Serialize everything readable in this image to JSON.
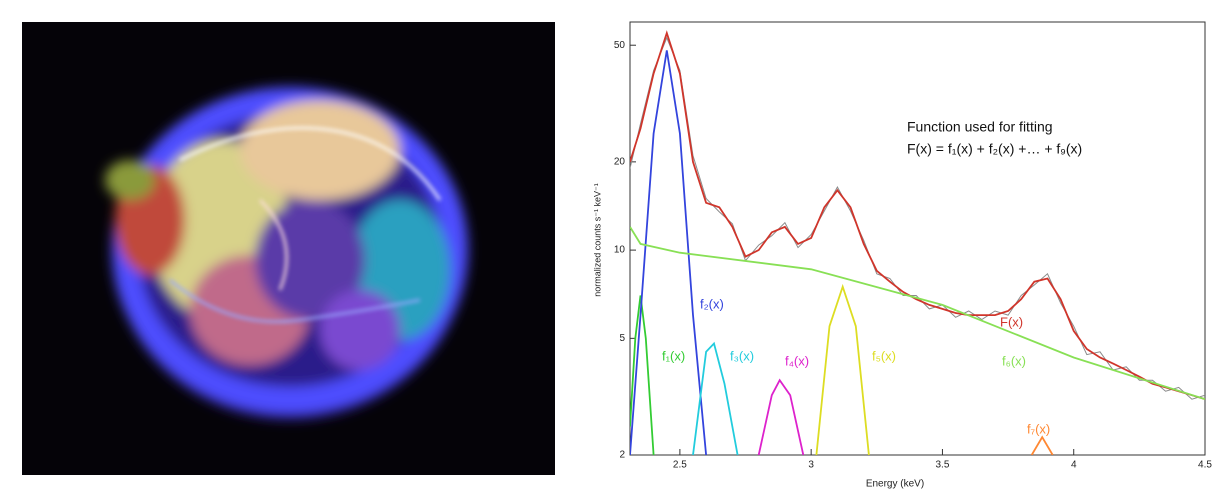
{
  "chart_data": {
    "type": "line",
    "log_y": true,
    "xlabel": "Energy (keV)",
    "ylabel": "normalized counts s⁻¹ keV⁻¹",
    "annotations": [
      "Function used for fitting",
      "F(x) = f₁(x) + f₂(x) +… + f₉(x)"
    ],
    "xlim": [
      2.31,
      4.5
    ],
    "xticks": [
      2.5,
      3,
      3.5,
      4,
      4.5
    ],
    "ylim": [
      2,
      60
    ],
    "yticks": [
      2,
      5,
      10,
      20,
      50
    ],
    "series": [
      {
        "color": "#8a8a8a",
        "x": [
          2.31,
          2.35,
          2.4,
          2.45,
          2.5,
          2.55,
          2.6,
          2.65,
          2.7,
          2.75,
          2.8,
          2.85,
          2.9,
          2.95,
          3.0,
          3.05,
          3.1,
          3.15,
          3.2,
          3.25,
          3.3,
          3.35,
          3.4,
          3.45,
          3.5,
          3.55,
          3.6,
          3.65,
          3.7,
          3.75,
          3.8,
          3.85,
          3.9,
          3.95,
          4.0,
          4.05,
          4.1,
          4.15,
          4.2,
          4.25,
          4.3,
          4.35,
          4.4,
          4.45,
          4.5
        ],
        "values": [
          19,
          27,
          41,
          53,
          41,
          21,
          15,
          13.5,
          12.3,
          9.2,
          10.4,
          11.2,
          12.4,
          10.2,
          11.3,
          13.6,
          16.4,
          13.6,
          10.8,
          8.3,
          8.0,
          7.0,
          7.0,
          6.3,
          6.5,
          5.9,
          6.2,
          5.8,
          6.2,
          6.0,
          7.0,
          7.6,
          8.3,
          6.6,
          5.5,
          4.4,
          4.5,
          3.9,
          4.0,
          3.6,
          3.6,
          3.3,
          3.4,
          3.1,
          3.2
        ]
      },
      {
        "name": "F(x)",
        "color": "#d0352b",
        "x": [
          2.31,
          2.35,
          2.4,
          2.45,
          2.5,
          2.55,
          2.6,
          2.65,
          2.7,
          2.75,
          2.8,
          2.85,
          2.9,
          2.95,
          3.0,
          3.05,
          3.1,
          3.15,
          3.2,
          3.25,
          3.3,
          3.35,
          3.4,
          3.45,
          3.5,
          3.55,
          3.6,
          3.65,
          3.7,
          3.75,
          3.8,
          3.85,
          3.9,
          3.95,
          4.0,
          4.05,
          4.1,
          4.15,
          4.2,
          4.25,
          4.3,
          4.35,
          4.4,
          4.45,
          4.5
        ],
        "values": [
          20,
          26,
          40,
          55,
          40,
          20,
          14.5,
          14,
          12,
          9.5,
          10,
          11.5,
          12,
          10.5,
          11,
          14,
          16,
          14,
          10.5,
          8.5,
          7.8,
          7.2,
          6.8,
          6.5,
          6.3,
          6.1,
          6.0,
          6.0,
          6.0,
          6.2,
          6.8,
          7.8,
          8.0,
          6.8,
          5.3,
          4.6,
          4.3,
          4.1,
          3.9,
          3.7,
          3.5,
          3.4,
          3.3,
          3.2,
          3.1
        ]
      },
      {
        "name": "f₁(x)",
        "color": "#33cc33",
        "x": [
          2.31,
          2.33,
          2.35,
          2.37,
          2.4
        ],
        "values": [
          2.5,
          5,
          7,
          5,
          2
        ]
      },
      {
        "name": "f₂(x)",
        "color": "#3344dd",
        "x": [
          2.31,
          2.35,
          2.4,
          2.45,
          2.5,
          2.55,
          2.6
        ],
        "values": [
          2,
          6,
          25,
          48,
          25,
          6,
          2
        ]
      },
      {
        "name": "f₃(x)",
        "color": "#22ccdd",
        "x": [
          2.55,
          2.6,
          2.63,
          2.67,
          2.72
        ],
        "values": [
          2,
          4.5,
          4.8,
          3.5,
          2
        ]
      },
      {
        "name": "f₄(x)",
        "color": "#dd22cc",
        "x": [
          2.8,
          2.85,
          2.88,
          2.92,
          2.97
        ],
        "values": [
          2,
          3.2,
          3.6,
          3.2,
          2
        ]
      },
      {
        "name": "f₅(x)",
        "color": "#dddd22",
        "x": [
          3.02,
          3.07,
          3.12,
          3.17,
          3.22
        ],
        "values": [
          2,
          5.5,
          7.5,
          5.5,
          2
        ]
      },
      {
        "name": "f₆(x)",
        "color": "#88e055",
        "x": [
          2.31,
          2.35,
          2.5,
          3.0,
          3.5,
          4.0,
          4.5
        ],
        "values": [
          12,
          10.5,
          9.8,
          8.6,
          6.5,
          4.3,
          3.1
        ]
      },
      {
        "name": "f₇(x)",
        "color": "#ff8833",
        "x": [
          3.84,
          3.88,
          3.92
        ],
        "values": [
          2,
          2.3,
          2
        ]
      }
    ]
  }
}
